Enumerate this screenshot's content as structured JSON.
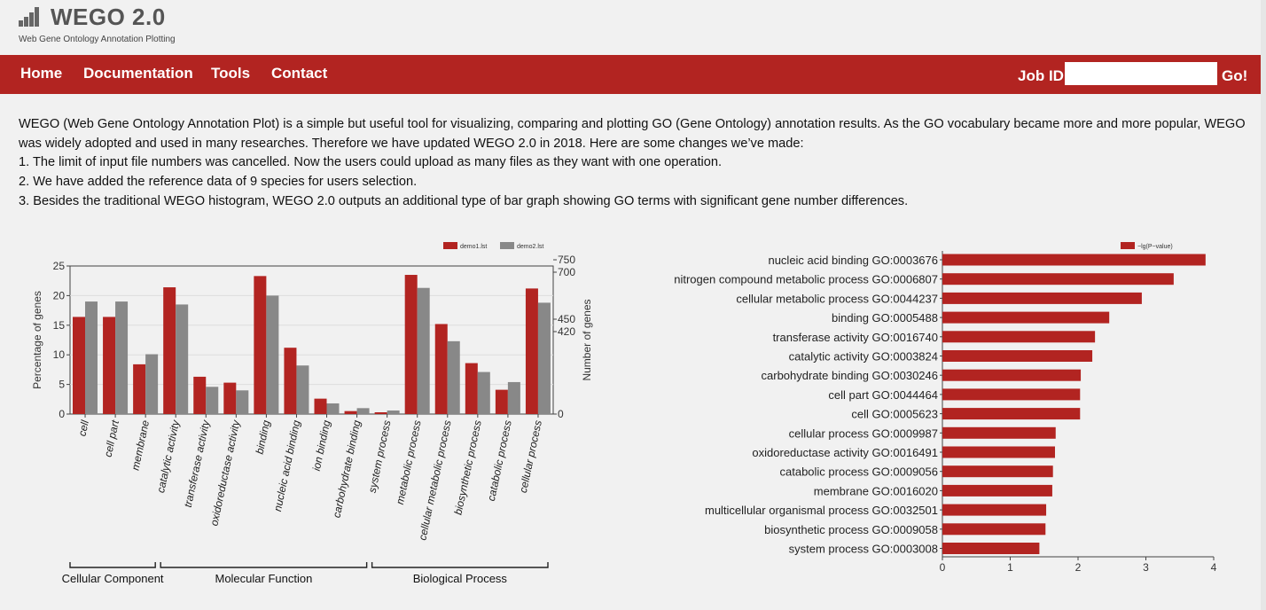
{
  "header": {
    "title": "WEGO 2.0",
    "subtitle": "Web Gene Ontology Annotation Plotting",
    "logo_icon": "bar-chart-logo-icon"
  },
  "nav": {
    "items": [
      "Home",
      "Documentation",
      "Tools",
      "Contact"
    ],
    "job_label": "Job ID",
    "job_value": "",
    "go_label": "Go!"
  },
  "intro": {
    "paragraph": "WEGO (Web Gene Ontology Annotation Plot) is a simple but useful tool for visualizing, comparing and plotting GO (Gene Ontology) annotation results. As the GO vocabulary became more and more popular, WEGO was widely adopted and used in many researches. Therefore we have updated WEGO 2.0 in 2018. Here are some changes we’ve made:",
    "points": [
      "1. The limit of input file numbers was cancelled. Now the users could upload as many files as they want with one operation.",
      "2. We have added the reference data of 9 species for users selection.",
      "3. Besides the traditional WEGO histogram, WEGO 2.0 outputs an additional type of bar graph showing GO terms with significant gene number differences."
    ]
  },
  "colors": {
    "brand": "#b22421",
    "series1": "#b22421",
    "series2": "#888888"
  },
  "chart_data": [
    {
      "type": "bar",
      "categories": [
        "cell",
        "cell part",
        "membrane",
        "catalytic activity",
        "transferase activity",
        "oxidoreductase activity",
        "binding",
        "nucleic acid binding",
        "ion binding",
        "carbohydrate binding",
        "system process",
        "metabolic process",
        "cellular metabolic process",
        "biosynthetic process",
        "catabolic process",
        "cellular process"
      ],
      "series": [
        {
          "name": "demo1.lst",
          "values": [
            16.4,
            16.4,
            8.4,
            21.4,
            6.3,
            5.3,
            23.3,
            11.2,
            2.6,
            0.5,
            0.3,
            23.5,
            15.2,
            8.6,
            4.1,
            21.2
          ]
        },
        {
          "name": "demo2.lst",
          "values": [
            19.0,
            19.0,
            10.1,
            18.5,
            4.6,
            4.0,
            20.0,
            8.2,
            1.8,
            1.0,
            0.6,
            21.3,
            12.3,
            7.1,
            5.4,
            18.8
          ]
        }
      ],
      "groups": [
        {
          "label": "Cellular Component",
          "count": 3
        },
        {
          "label": "Molecular Function",
          "count": 7
        },
        {
          "label": "Biological Process",
          "count": 6
        }
      ],
      "ylabel": "Percentage of genes",
      "ylim": [
        0,
        25
      ],
      "yticks": [
        "0",
        "5",
        "10",
        "15",
        "20",
        "25"
      ],
      "y2label": "Number of genes",
      "y2ticks": [
        "0",
        "420",
        "450",
        "700",
        "750"
      ],
      "legend_position": "top-right",
      "grid": true
    },
    {
      "type": "bar",
      "orientation": "horizontal",
      "categories": [
        "nucleic acid binding GO:0003676",
        "nitrogen compound metabolic process GO:0006807",
        "cellular metabolic process GO:0044237",
        "binding GO:0005488",
        "transferase activity GO:0016740",
        "catalytic activity GO:0003824",
        "carbohydrate binding GO:0030246",
        "cell part GO:0044464",
        "cell GO:0005623",
        "cellular process GO:0009987",
        "oxidoreductase activity GO:0016491",
        "catabolic process GO:0009056",
        "membrane GO:0016020",
        "multicellular organismal process GO:0032501",
        "biosynthetic process GO:0009058",
        "system process GO:0003008"
      ],
      "series": [
        {
          "name": "−lg(P−value)",
          "values": [
            3.88,
            3.41,
            2.94,
            2.46,
            2.25,
            2.21,
            2.04,
            2.03,
            2.03,
            1.67,
            1.66,
            1.63,
            1.62,
            1.53,
            1.52,
            1.43
          ]
        }
      ],
      "xlim": [
        0,
        4
      ],
      "xticks": [
        "0",
        "1",
        "2",
        "3",
        "4"
      ],
      "legend_position": "top-right",
      "grid": false
    }
  ]
}
